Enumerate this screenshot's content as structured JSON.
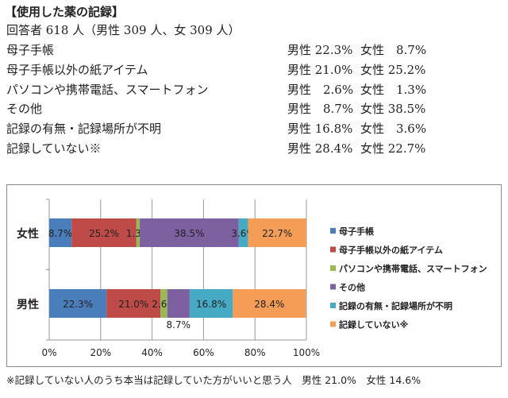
{
  "title": "【使用した薬の記録】",
  "respondents": "回答者 618 人（男性 309 人、女 309 人）",
  "rows": [
    {
      "label": "母子手帳",
      "male": "男性 22.3%",
      "female": "女性　8.7%"
    },
    {
      "label": "母子手帳以外の紙アイテム",
      "male": "男性 21.0%",
      "female": "女性 25.2%"
    },
    {
      "label": "パソコンや携帯電話、スマートフォン",
      "male": "男性　2.6%",
      "female": "女性　1.3%"
    },
    {
      "label": "その他",
      "male": "男性　8.7%",
      "female": "女性 38.5%"
    },
    {
      "label": "記録の有無・記録場所が不明",
      "male": "男性 16.8%",
      "female": "女性　3.6%"
    },
    {
      "label": "記録していない※",
      "male": "男性 28.4%",
      "female": "女性 22.7%"
    }
  ],
  "chart_data": {
    "type": "bar",
    "orientation": "horizontal-stacked-100",
    "categories": [
      "女性",
      "男性"
    ],
    "series": [
      {
        "name": "母子手帳",
        "color": "#4a7ebb",
        "values": [
          8.7,
          22.3
        ]
      },
      {
        "name": "母子手帳以外の紙アイテム",
        "color": "#be4b48",
        "values": [
          25.2,
          21.0
        ]
      },
      {
        "name": "パソコンや携帯電話、スマートフォン",
        "color": "#98b954",
        "values": [
          1.3,
          2.6
        ]
      },
      {
        "name": "その他",
        "color": "#7d60a0",
        "values": [
          38.5,
          8.7
        ]
      },
      {
        "name": "記録の有無・記録場所が不明",
        "color": "#46aac5",
        "values": [
          3.6,
          16.8
        ]
      },
      {
        "name": "記録していない※",
        "color": "#f59d56",
        "values": [
          22.7,
          28.4
        ]
      }
    ],
    "xticks": [
      "0%",
      "20%",
      "40%",
      "60%",
      "80%",
      "100%"
    ],
    "xlim": [
      0,
      100
    ],
    "grid": true,
    "legend": "right"
  },
  "footer": "※記録していない人のうち本当は記録していた方がいいと思う人　男性 21.0%　女性 14.6%"
}
